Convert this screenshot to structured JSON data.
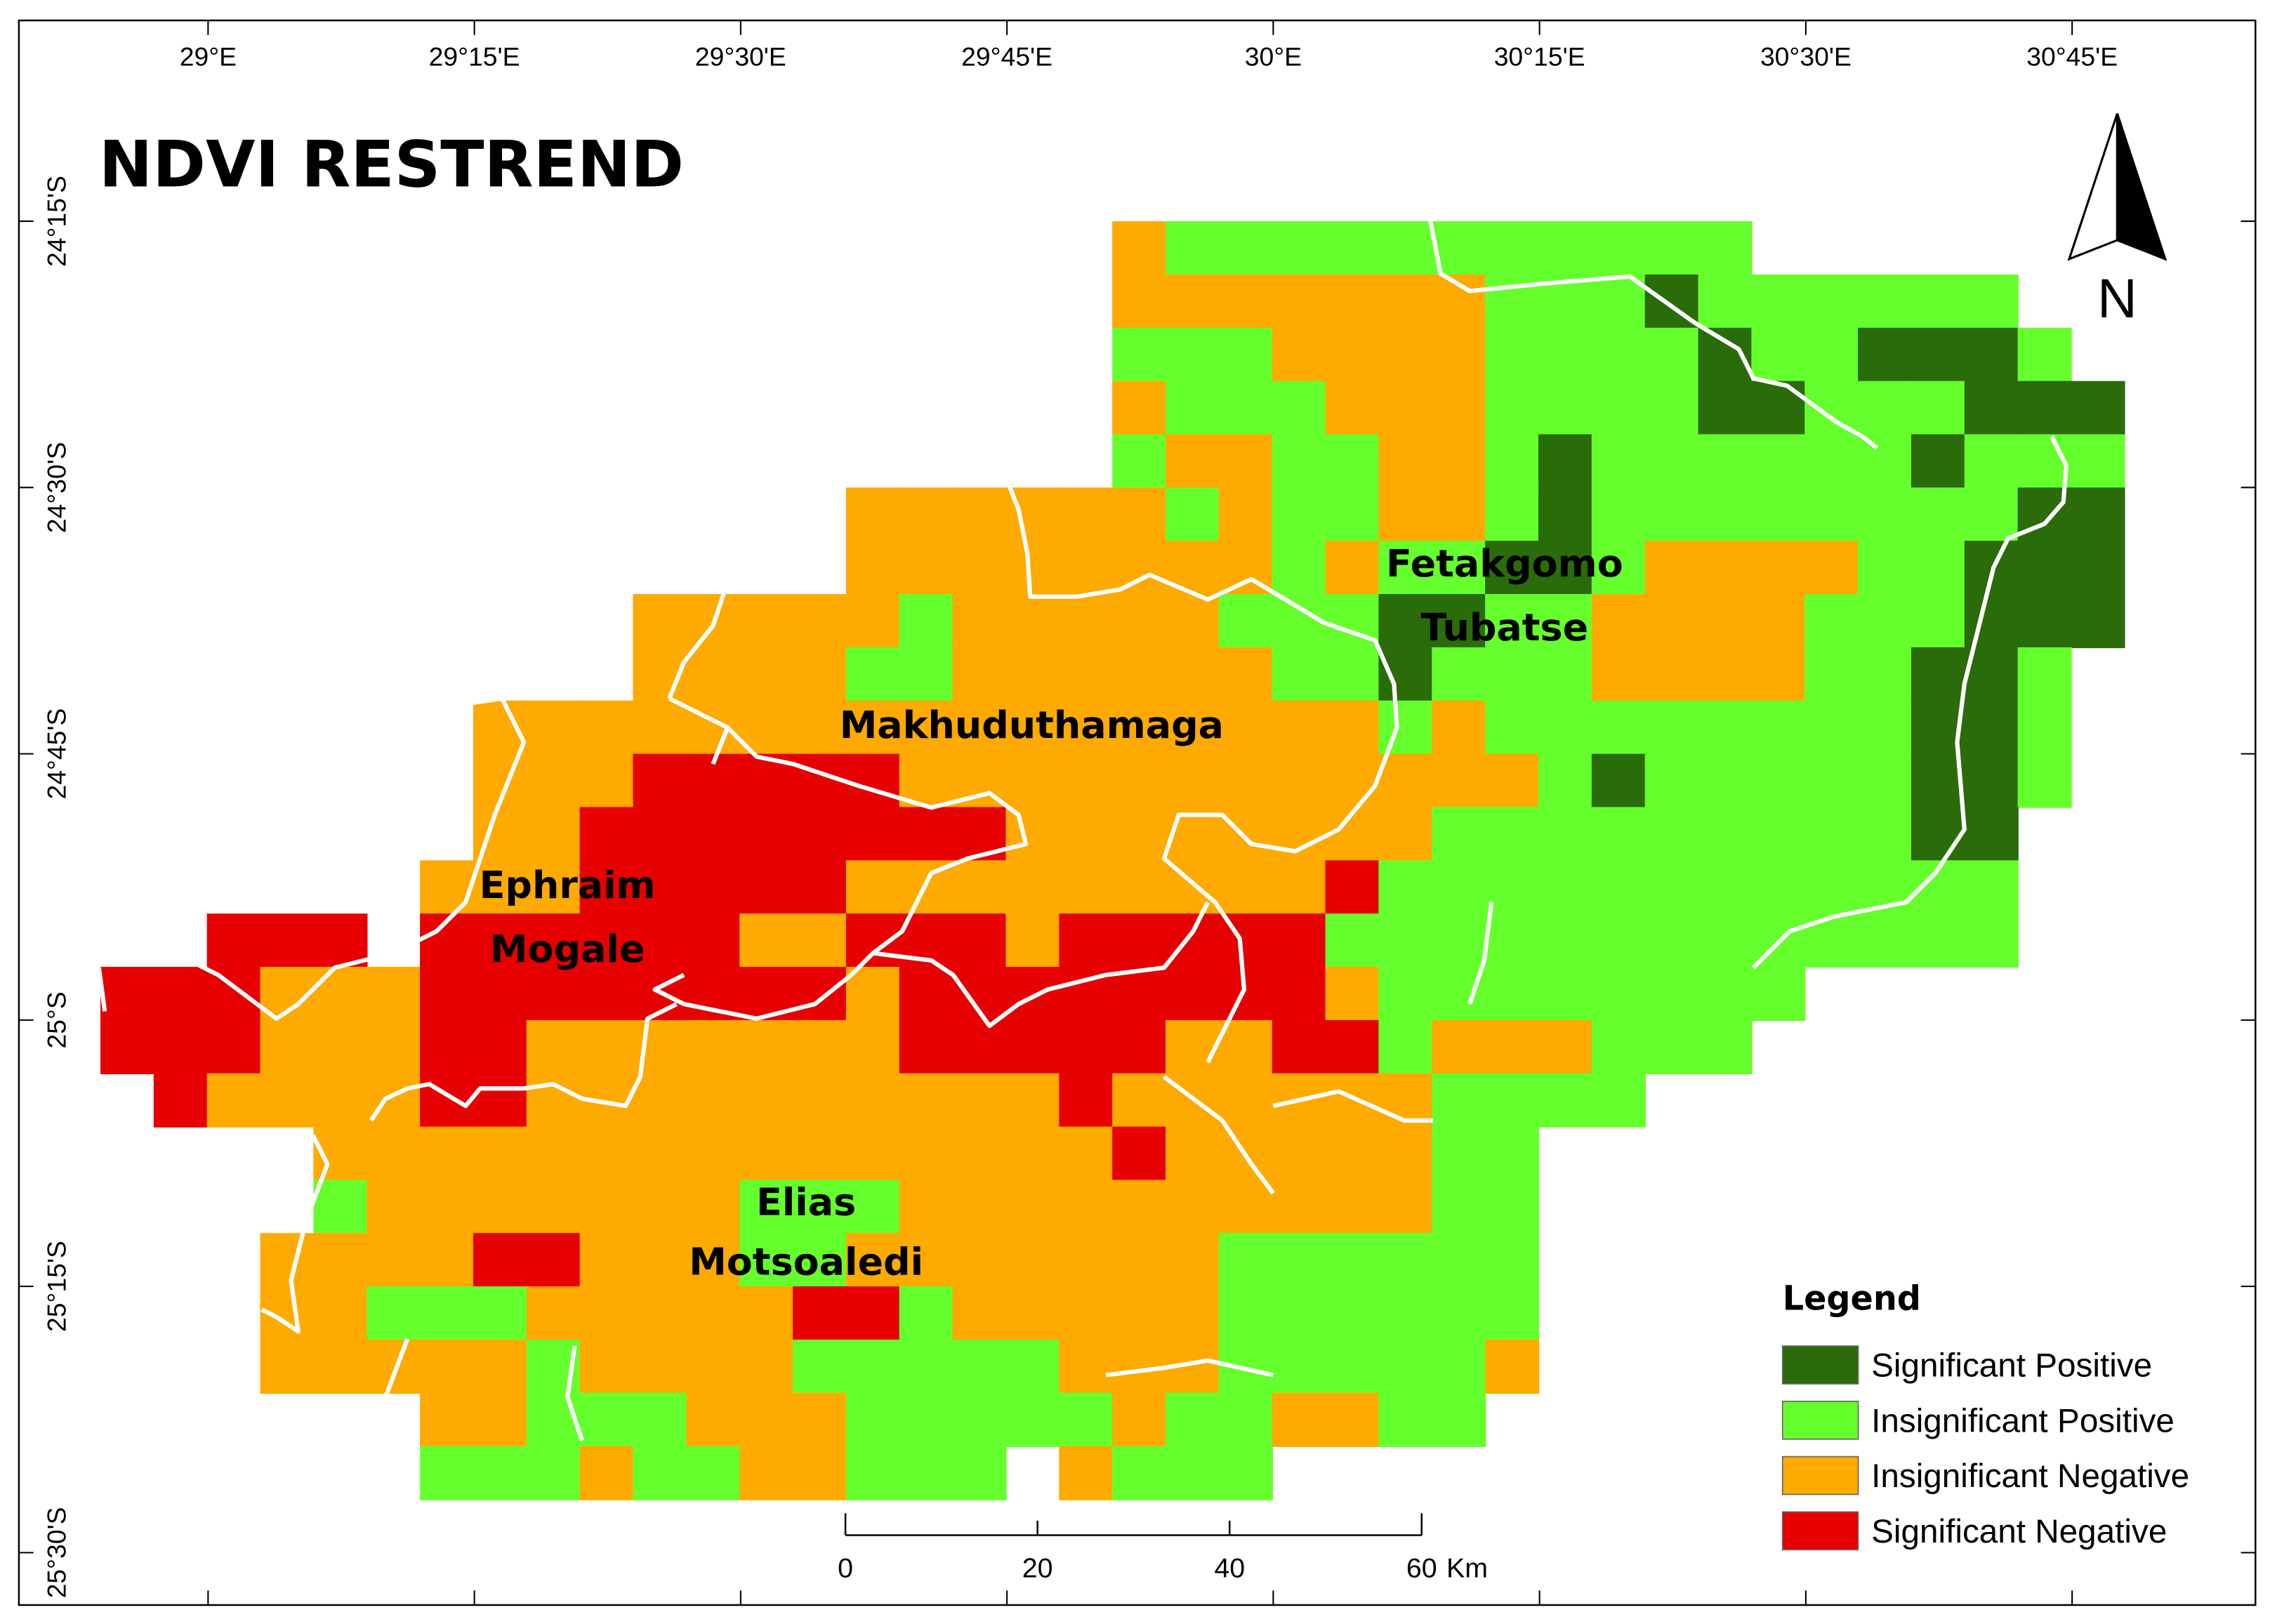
{
  "title": "NDVI RESTREND",
  "north_arrow": {
    "label": "N",
    "icon": "north-arrow-icon"
  },
  "graticule": {
    "top_labels": [
      "29°E",
      "29°15'E",
      "29°30'E",
      "29°45'E",
      "30°E",
      "30°15'E",
      "30°30'E",
      "30°45'E"
    ],
    "left_labels": [
      "24°15'S",
      "24°30'S",
      "24°45'S",
      "25°S",
      "25°15'S",
      "25°30'S"
    ]
  },
  "municipalities": [
    {
      "lines": [
        "Fetakgomo",
        "Tubatse"
      ]
    },
    {
      "lines": [
        "Makhuduthamaga"
      ]
    },
    {
      "lines": [
        "Ephraim",
        "Mogale"
      ]
    },
    {
      "lines": [
        "Elias",
        "Motsoaledi"
      ]
    }
  ],
  "legend": {
    "title": "Legend",
    "items": [
      {
        "label": "Significant Positive",
        "color": "#2a6b0a"
      },
      {
        "label": "Insignificant Positive",
        "color": "#66ff2e"
      },
      {
        "label": "Insignificant Negative",
        "color": "#ffaa00"
      },
      {
        "label": "Significant Negative",
        "color": "#e60000"
      }
    ]
  },
  "scale_bar": {
    "ticks": [
      "0",
      "20",
      "40",
      "60"
    ],
    "unit": "Km"
  },
  "colors": {
    "significant_positive": "#2a6b0a",
    "insignificant_positive": "#66ff2e",
    "insignificant_negative": "#ffaa00",
    "significant_negative": "#e60000",
    "boundary": "#ffffff"
  }
}
